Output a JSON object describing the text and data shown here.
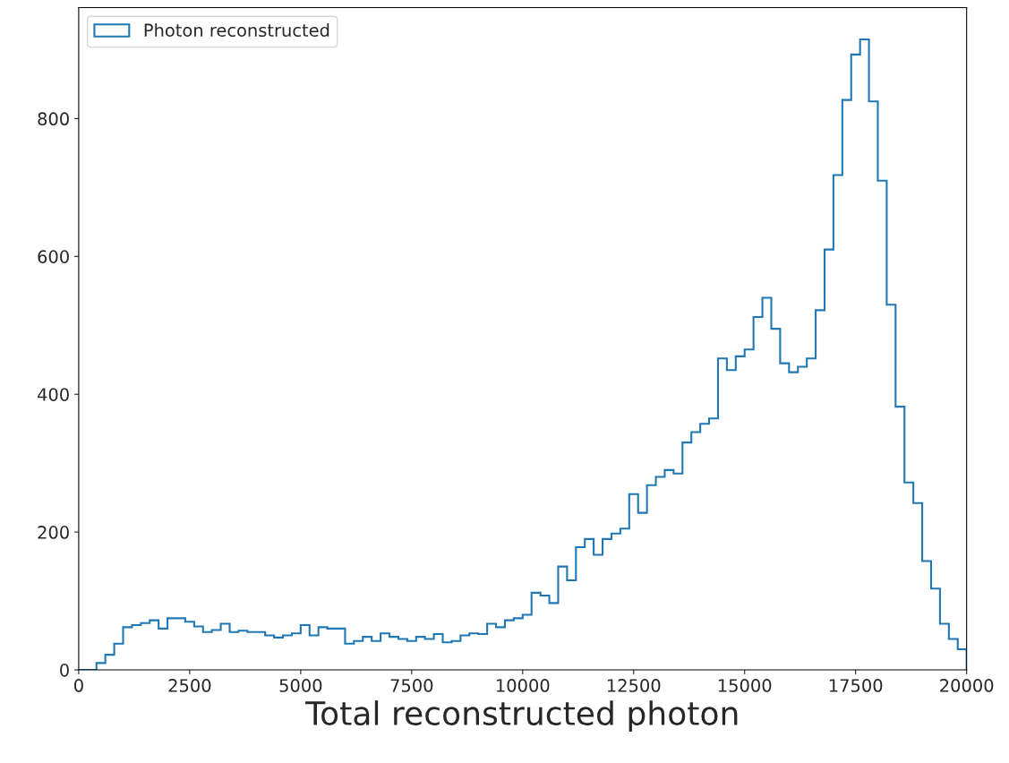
{
  "chart_data": {
    "type": "histogram",
    "xlabel": "Total reconstructed photon",
    "bins": [
      0,
      200,
      400,
      600,
      800,
      1000,
      1200,
      1400,
      1600,
      1800,
      2000,
      2200,
      2400,
      2600,
      2800,
      3000,
      3200,
      3400,
      3600,
      3800,
      4000,
      4200,
      4400,
      4600,
      4800,
      5000,
      5200,
      5400,
      5600,
      5800,
      6000,
      6200,
      6400,
      6600,
      6800,
      7000,
      7200,
      7400,
      7600,
      7800,
      8000,
      8200,
      8400,
      8600,
      8800,
      9000,
      9200,
      9400,
      9600,
      9800,
      10000,
      10200,
      10400,
      10600,
      10800,
      11000,
      11200,
      11400,
      11600,
      11800,
      12000,
      12200,
      12400,
      12600,
      12800,
      13000,
      13200,
      13400,
      13600,
      13800,
      14000,
      14200,
      14400,
      14600,
      14800,
      15000,
      15200,
      15400,
      15600,
      15800,
      16000,
      16200,
      16400,
      16600,
      16800,
      17000,
      17200,
      17400,
      17600,
      17800,
      18000,
      18200,
      18400,
      18600,
      18800,
      19000,
      19200,
      19400,
      19600,
      19800,
      20000
    ],
    "series": [
      {
        "name": "Photon reconstructed",
        "color": "#1f77b4",
        "values": [
          0,
          0,
          10,
          22,
          38,
          62,
          65,
          68,
          72,
          60,
          75,
          75,
          70,
          63,
          55,
          58,
          67,
          55,
          57,
          55,
          55,
          50,
          47,
          50,
          53,
          65,
          50,
          62,
          60,
          60,
          38,
          42,
          48,
          42,
          53,
          48,
          45,
          42,
          48,
          45,
          52,
          40,
          42,
          50,
          53,
          52,
          67,
          62,
          72,
          75,
          80,
          112,
          108,
          97,
          150,
          130,
          178,
          190,
          167,
          190,
          198,
          205,
          255,
          228,
          268,
          280,
          290,
          285,
          330,
          345,
          357,
          365,
          452,
          435,
          455,
          465,
          512,
          540,
          495,
          445,
          432,
          440,
          452,
          522,
          610,
          718,
          827,
          893,
          915,
          825,
          710,
          530,
          382,
          272,
          242,
          158,
          118,
          67,
          45,
          30
        ]
      }
    ],
    "xlim": [
      0,
      20000
    ],
    "xticks": [
      0,
      2500,
      5000,
      7500,
      10000,
      12500,
      15000,
      17500,
      20000
    ],
    "ylim": [
      0,
      961
    ],
    "yticks": [
      0,
      200,
      400,
      600,
      800
    ],
    "grid": false,
    "legend": "top left"
  }
}
